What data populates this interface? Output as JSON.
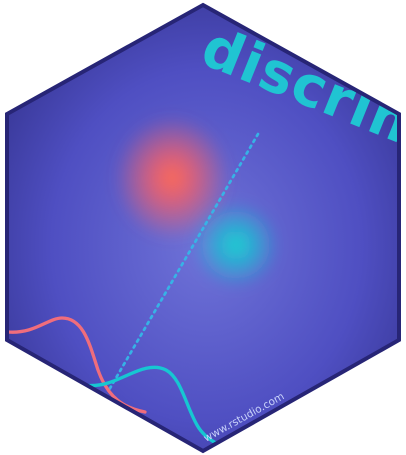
{
  "sticker": {
    "title": "discrim",
    "url": "www.rstudio.com"
  },
  "colors": {
    "background_light": "#6f73d8",
    "background_dark": "#2d2c82",
    "border": "#272576",
    "title": "#20c4d2",
    "left_cluster": "#ff6b55",
    "right_cluster": "#18d5d0",
    "decision_boundary": "#35b7e8",
    "left_curve": "#f06d7b",
    "right_curve": "#17c7d2"
  }
}
